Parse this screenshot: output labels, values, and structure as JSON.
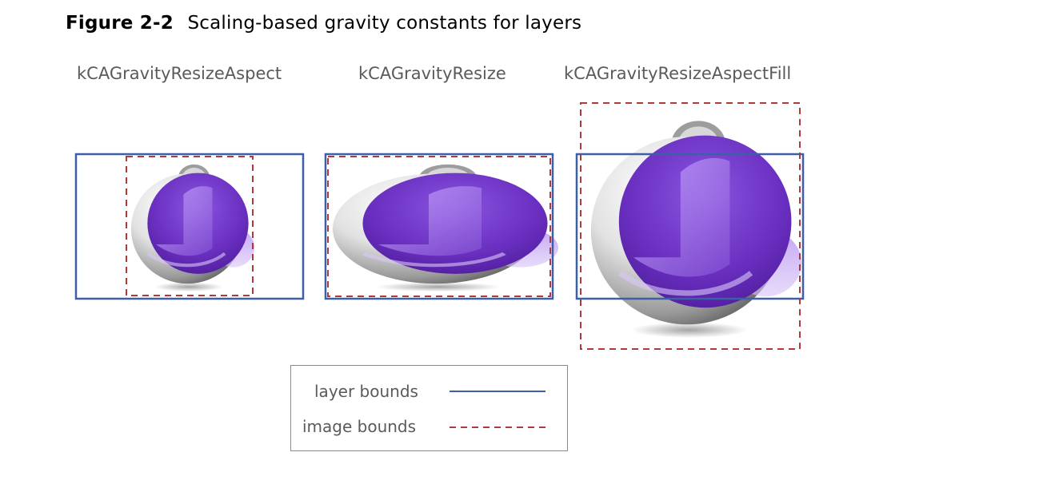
{
  "figure": {
    "number": "Figure 2-2",
    "caption": "Scaling-based gravity constants for layers"
  },
  "panels": [
    {
      "label": "kCAGravityResizeAspect"
    },
    {
      "label": "kCAGravityResize"
    },
    {
      "label": "kCAGravityResizeAspectFill"
    }
  ],
  "legend": {
    "layer_bounds_label": "layer bounds",
    "image_bounds_label": "image bounds"
  },
  "colors": {
    "layer_bounds": "#3d5fa6",
    "image_bounds": "#b03a3a",
    "sphere_purple": "#6a2fc0"
  }
}
